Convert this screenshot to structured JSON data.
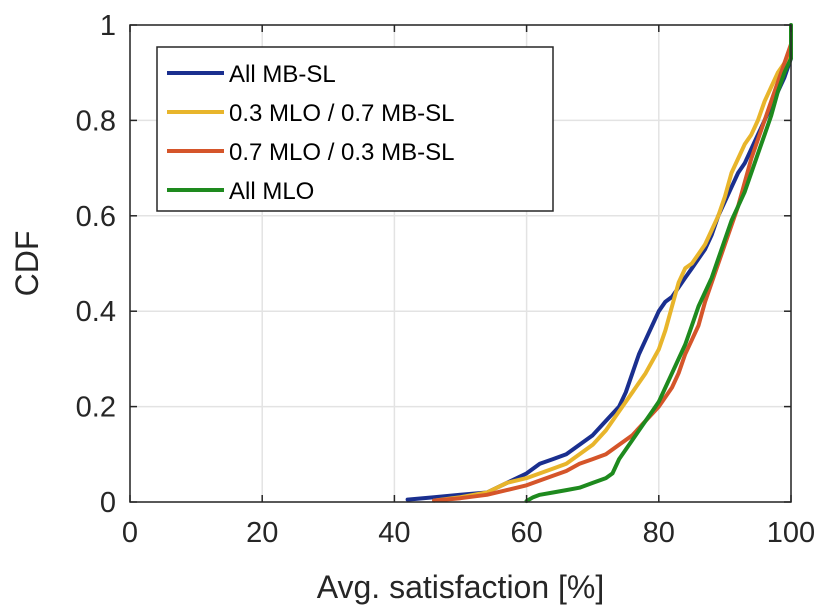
{
  "chart_data": {
    "type": "line",
    "xlabel": "Avg. satisfaction [%]",
    "ylabel": "CDF",
    "xlim": [
      0,
      100
    ],
    "ylim": [
      0,
      1
    ],
    "xticks": [
      0,
      20,
      40,
      60,
      80,
      100
    ],
    "yticks": [
      0,
      0.2,
      0.4,
      0.6,
      0.8,
      1
    ],
    "xtick_labels": [
      "0",
      "20",
      "40",
      "60",
      "80",
      "100"
    ],
    "ytick_labels": [
      "0",
      "0.2",
      "0.4",
      "0.6",
      "0.8",
      "1"
    ],
    "grid": true,
    "legend_position": "top-left",
    "series": [
      {
        "name": "All MB-SL",
        "color": "#1a2f8f",
        "x": [
          42,
          46,
          50,
          54,
          57,
          60,
          62,
          64,
          66,
          68,
          70,
          72,
          74,
          75,
          76,
          77,
          78,
          79,
          80,
          81,
          82,
          83,
          84,
          85,
          86,
          87,
          88,
          89,
          90,
          91,
          92,
          93,
          94,
          95,
          96,
          97,
          98,
          99,
          100
        ],
        "y": [
          0.005,
          0.01,
          0.015,
          0.02,
          0.04,
          0.06,
          0.08,
          0.09,
          0.1,
          0.12,
          0.14,
          0.17,
          0.2,
          0.23,
          0.27,
          0.31,
          0.34,
          0.37,
          0.4,
          0.42,
          0.43,
          0.45,
          0.47,
          0.49,
          0.51,
          0.53,
          0.56,
          0.6,
          0.63,
          0.66,
          0.69,
          0.71,
          0.74,
          0.77,
          0.8,
          0.83,
          0.86,
          0.89,
          0.93
        ]
      },
      {
        "name": "0.3 MLO / 0.7 MB-SL",
        "color": "#e8b52b",
        "x": [
          46,
          50,
          54,
          57,
          60,
          62,
          64,
          66,
          68,
          70,
          72,
          74,
          76,
          78,
          80,
          81,
          82,
          83,
          84,
          85,
          86,
          87,
          88,
          89,
          90,
          91,
          92,
          93,
          94,
          95,
          96,
          97,
          98,
          99,
          100
        ],
        "y": [
          0.003,
          0.01,
          0.02,
          0.04,
          0.05,
          0.06,
          0.07,
          0.08,
          0.1,
          0.12,
          0.15,
          0.19,
          0.23,
          0.27,
          0.32,
          0.36,
          0.41,
          0.46,
          0.49,
          0.5,
          0.52,
          0.54,
          0.57,
          0.6,
          0.64,
          0.69,
          0.72,
          0.75,
          0.77,
          0.8,
          0.84,
          0.87,
          0.9,
          0.92,
          0.95
        ]
      },
      {
        "name": "0.7 MLO / 0.3 MB-SL",
        "color": "#d5552a",
        "x": [
          46,
          50,
          54,
          57,
          60,
          62,
          64,
          66,
          68,
          70,
          72,
          74,
          76,
          78,
          80,
          82,
          83,
          84,
          85,
          86,
          87,
          88,
          89,
          90,
          91,
          92,
          93,
          94,
          95,
          96,
          97,
          98,
          99,
          100
        ],
        "y": [
          0.003,
          0.008,
          0.015,
          0.025,
          0.035,
          0.045,
          0.055,
          0.065,
          0.08,
          0.09,
          0.1,
          0.12,
          0.14,
          0.17,
          0.2,
          0.24,
          0.27,
          0.31,
          0.34,
          0.37,
          0.42,
          0.46,
          0.5,
          0.54,
          0.58,
          0.62,
          0.67,
          0.72,
          0.76,
          0.8,
          0.84,
          0.88,
          0.92,
          0.96
        ]
      },
      {
        "name": "All MLO",
        "color": "#1e8a1e",
        "x": [
          60,
          61,
          62,
          64,
          66,
          68,
          70,
          72,
          73,
          74,
          75,
          76,
          77,
          78,
          79,
          80,
          81,
          82,
          83,
          84,
          85,
          86,
          87,
          88,
          89,
          90,
          91,
          92,
          93,
          94,
          95,
          96,
          97,
          98,
          99,
          100,
          100
        ],
        "y": [
          0.002,
          0.01,
          0.015,
          0.02,
          0.025,
          0.03,
          0.04,
          0.05,
          0.06,
          0.09,
          0.11,
          0.13,
          0.15,
          0.17,
          0.19,
          0.21,
          0.24,
          0.27,
          0.3,
          0.33,
          0.37,
          0.41,
          0.44,
          0.47,
          0.51,
          0.55,
          0.59,
          0.62,
          0.65,
          0.69,
          0.73,
          0.77,
          0.81,
          0.86,
          0.9,
          0.93,
          1.0
        ]
      }
    ]
  }
}
